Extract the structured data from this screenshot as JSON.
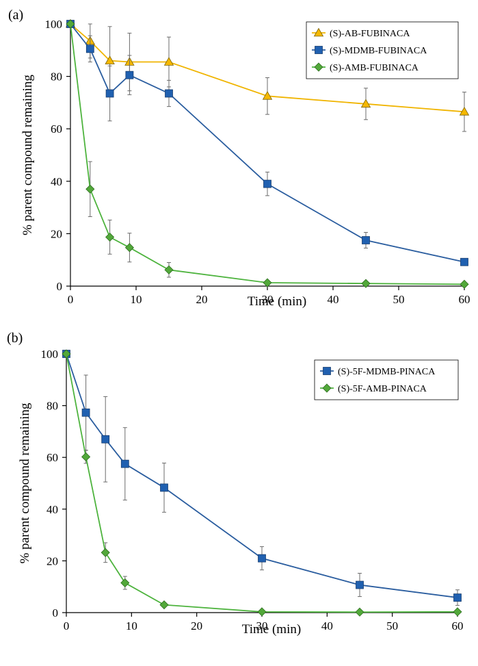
{
  "chart_data": [
    {
      "type": "line",
      "panel_label": "(a)",
      "xlabel": "Time (min)",
      "ylabel": "% parent compound remaining",
      "xlim": [
        0,
        60
      ],
      "ylim": [
        0,
        100
      ],
      "xticks": [
        0,
        10,
        20,
        30,
        40,
        50,
        60
      ],
      "yticks": [
        0,
        20,
        40,
        60,
        80,
        100
      ],
      "grid": false,
      "legend_position": "top-right",
      "x": [
        0,
        3,
        6,
        9,
        15,
        30,
        45,
        60
      ],
      "series": [
        {
          "name": "(S)-AB-FUBINACA",
          "marker": "triangle",
          "color": "#f5b800",
          "stroke": "#f0b400",
          "values": [
            100,
            93.5,
            86,
            85.5,
            85.5,
            72.5,
            69.5,
            66.5
          ],
          "errors": [
            0,
            6.5,
            13,
            11,
            9.5,
            7,
            6,
            7.5
          ]
        },
        {
          "name": "(S)-MDMB-FUBINACA",
          "marker": "square",
          "color": "#2060b0",
          "stroke": "#2a5d9f",
          "values": [
            100,
            90.5,
            73.5,
            80.5,
            73.5,
            39,
            17.5,
            9.2
          ],
          "errors": [
            0,
            5,
            10.5,
            7.5,
            5,
            4.5,
            3,
            0
          ]
        },
        {
          "name": "(S)-AMB-FUBINACA",
          "marker": "diamond",
          "color": "#52a83a",
          "stroke": "#4db33d",
          "values": [
            100,
            37,
            18.7,
            14.7,
            6.2,
            1.3,
            1,
            0.7
          ],
          "errors": [
            0,
            10.5,
            6.5,
            5.5,
            2.8,
            0,
            0,
            0
          ]
        }
      ]
    },
    {
      "type": "line",
      "panel_label": "(b)",
      "xlabel": "Time (min)",
      "ylabel": "% parent compound remaining",
      "xlim": [
        0,
        60
      ],
      "ylim": [
        0,
        100
      ],
      "xticks": [
        0,
        10,
        20,
        30,
        40,
        50,
        60
      ],
      "yticks": [
        0,
        20,
        40,
        60,
        80,
        100
      ],
      "grid": false,
      "legend_position": "top-right",
      "x": [
        0,
        3,
        6,
        9,
        15,
        30,
        45,
        60
      ],
      "series": [
        {
          "name": "(S)-5F-MDMB-PINACA",
          "marker": "square",
          "color": "#2060b0",
          "stroke": "#2a5d9f",
          "values": [
            100,
            77.3,
            67,
            57.5,
            48.3,
            21,
            10.7,
            5.8
          ],
          "errors": [
            0,
            14.5,
            16.5,
            14,
            9.5,
            4.5,
            4.5,
            3
          ]
        },
        {
          "name": "(S)-5F-AMB-PINACA",
          "marker": "diamond",
          "color": "#52a83a",
          "stroke": "#4db33d",
          "values": [
            100,
            60.2,
            23.2,
            11.5,
            3,
            0.3,
            0.2,
            0.3
          ],
          "errors": [
            0,
            2.5,
            3.8,
            2.5,
            0,
            0,
            0,
            0
          ]
        }
      ]
    }
  ]
}
